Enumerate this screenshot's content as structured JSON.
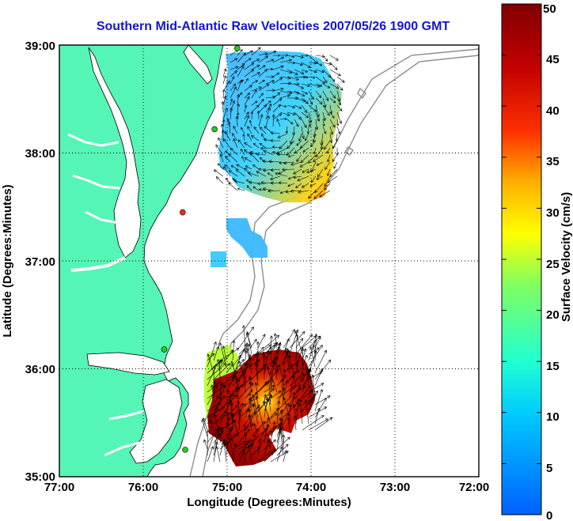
{
  "chart_data": {
    "type": "map",
    "title": "Southern Mid-Atlantic Raw Velocities 2007/05/26 1900 GMT",
    "xlabel": "Longitude (Degrees:Minutes)",
    "ylabel": "Latitude (Degrees:Minutes)",
    "x_ticks": [
      "77:00",
      "76:00",
      "75:00",
      "74:00",
      "73:00",
      "72:00"
    ],
    "y_ticks": [
      "39:00",
      "38:00",
      "37:00",
      "36:00",
      "35:00"
    ],
    "xlim": [
      -77,
      -72
    ],
    "ylim": [
      35,
      39
    ],
    "grid": true,
    "colorbar": {
      "label": "Surface Velocity (cm/s)",
      "range": [
        0,
        50
      ],
      "ticks": [
        "0",
        "5",
        "10",
        "15",
        "20",
        "25",
        "30",
        "35",
        "40",
        "45",
        "50"
      ]
    },
    "stations": [
      {
        "lon": -74.88,
        "lat": 38.97,
        "color": "#22cc22"
      },
      {
        "lon": -75.15,
        "lat": 38.22,
        "color": "#22cc22"
      },
      {
        "lon": -75.53,
        "lat": 37.45,
        "color": "#ff2020"
      },
      {
        "lon": -75.75,
        "lat": 36.18,
        "color": "#22cc22"
      },
      {
        "lon": -75.5,
        "lat": 35.25,
        "color": "#22cc22"
      }
    ],
    "velocity_fields": [
      {
        "region": "northern",
        "lon_range": [
          -75.05,
          -73.6
        ],
        "lat_range": [
          37.45,
          38.95
        ],
        "speed_range_cms": [
          5,
          30
        ]
      },
      {
        "region": "southern",
        "lon_range": [
          -75.2,
          -73.7
        ],
        "lat_range": [
          35.1,
          36.3
        ],
        "speed_range_cms": [
          20,
          48
        ]
      }
    ]
  }
}
